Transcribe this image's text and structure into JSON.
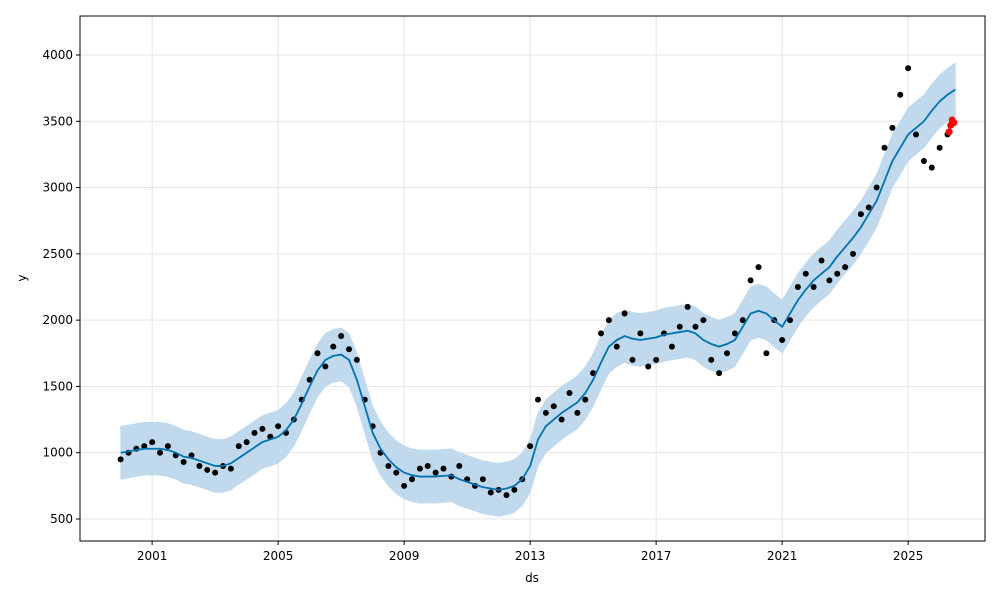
{
  "chart_data": {
    "type": "forecast",
    "xlabel": "ds",
    "ylabel": "y",
    "x": [
      2000,
      2000.25,
      2000.5,
      2000.75,
      2001,
      2001.25,
      2001.5,
      2001.75,
      2002,
      2002.25,
      2002.5,
      2002.75,
      2003,
      2003.25,
      2003.5,
      2003.75,
      2004,
      2004.25,
      2004.5,
      2004.75,
      2005,
      2005.25,
      2005.5,
      2005.75,
      2006,
      2006.25,
      2006.5,
      2006.75,
      2007,
      2007.25,
      2007.5,
      2007.75,
      2008,
      2008.25,
      2008.5,
      2008.75,
      2009,
      2009.25,
      2009.5,
      2009.75,
      2010,
      2010.25,
      2010.5,
      2010.75,
      2011,
      2011.25,
      2011.5,
      2011.75,
      2012,
      2012.25,
      2012.5,
      2012.75,
      2013,
      2013.25,
      2013.5,
      2013.75,
      2014,
      2014.25,
      2014.5,
      2014.75,
      2015,
      2015.25,
      2015.5,
      2015.75,
      2016,
      2016.25,
      2016.5,
      2016.75,
      2017,
      2017.25,
      2017.5,
      2017.75,
      2018,
      2018.25,
      2018.5,
      2018.75,
      2019,
      2019.25,
      2019.5,
      2019.75,
      2020,
      2020.25,
      2020.5,
      2020.75,
      2021,
      2021.25,
      2021.5,
      2021.75,
      2022,
      2022.25,
      2022.5,
      2022.75,
      2023,
      2023.25,
      2023.5,
      2023.75,
      2024,
      2024.25,
      2024.5,
      2024.75,
      2025,
      2025.25,
      2025.5,
      2025.75,
      2026,
      2026.25,
      2026.5
    ],
    "xlim": [
      1998.71,
      2027.44
    ],
    "ylim": [
      334,
      4294
    ],
    "xticks": [
      2001,
      2005,
      2009,
      2013,
      2017,
      2021,
      2025
    ],
    "yticks": [
      500,
      1000,
      1500,
      2000,
      2500,
      3000,
      3500,
      4000
    ],
    "grid": true,
    "band": {
      "color": "#c0d9ec",
      "lower": [
        800,
        810,
        820,
        830,
        830,
        830,
        820,
        800,
        770,
        760,
        740,
        720,
        700,
        700,
        720,
        760,
        800,
        840,
        880,
        900,
        920,
        970,
        1050,
        1170,
        1300,
        1420,
        1500,
        1530,
        1540,
        1500,
        1350,
        1150,
        950,
        830,
        750,
        690,
        650,
        630,
        620,
        620,
        620,
        625,
        630,
        600,
        580,
        560,
        540,
        530,
        520,
        530,
        550,
        600,
        700,
        900,
        1000,
        1050,
        1100,
        1140,
        1180,
        1250,
        1350,
        1480,
        1600,
        1650,
        1680,
        1660,
        1650,
        1660,
        1670,
        1690,
        1700,
        1710,
        1720,
        1700,
        1650,
        1620,
        1600,
        1620,
        1650,
        1750,
        1850,
        1870,
        1850,
        1800,
        1750,
        1850,
        1950,
        2030,
        2100,
        2150,
        2200,
        2280,
        2350,
        2420,
        2500,
        2600,
        2700,
        2850,
        3000,
        3100,
        3200,
        3250,
        3300,
        3380,
        3450,
        3500,
        3540
      ],
      "upper": [
        1200,
        1210,
        1220,
        1230,
        1230,
        1230,
        1220,
        1200,
        1170,
        1160,
        1140,
        1120,
        1100,
        1100,
        1120,
        1160,
        1200,
        1240,
        1280,
        1300,
        1320,
        1370,
        1450,
        1570,
        1700,
        1820,
        1900,
        1930,
        1940,
        1900,
        1750,
        1550,
        1350,
        1230,
        1150,
        1090,
        1050,
        1030,
        1020,
        1020,
        1020,
        1025,
        1030,
        1000,
        980,
        960,
        940,
        930,
        920,
        930,
        950,
        1000,
        1100,
        1300,
        1400,
        1450,
        1500,
        1540,
        1580,
        1650,
        1750,
        1880,
        2000,
        2050,
        2080,
        2060,
        2050,
        2060,
        2070,
        2090,
        2100,
        2110,
        2120,
        2100,
        2050,
        2020,
        2000,
        2020,
        2050,
        2150,
        2250,
        2270,
        2250,
        2200,
        2150,
        2250,
        2350,
        2430,
        2500,
        2550,
        2600,
        2680,
        2750,
        2820,
        2900,
        3000,
        3100,
        3250,
        3400,
        3500,
        3600,
        3650,
        3700,
        3780,
        3850,
        3900,
        3940
      ]
    },
    "forecast": {
      "color": "#0072b2",
      "values": [
        1000,
        1010,
        1020,
        1030,
        1030,
        1030,
        1020,
        1000,
        970,
        960,
        940,
        920,
        900,
        900,
        920,
        960,
        1000,
        1040,
        1080,
        1100,
        1120,
        1170,
        1250,
        1370,
        1500,
        1620,
        1700,
        1730,
        1740,
        1700,
        1550,
        1350,
        1150,
        1030,
        950,
        890,
        850,
        830,
        820,
        820,
        820,
        825,
        830,
        800,
        780,
        760,
        740,
        730,
        720,
        730,
        750,
        800,
        900,
        1100,
        1200,
        1250,
        1300,
        1340,
        1380,
        1450,
        1550,
        1680,
        1800,
        1850,
        1880,
        1860,
        1850,
        1860,
        1870,
        1890,
        1900,
        1910,
        1920,
        1900,
        1850,
        1820,
        1800,
        1820,
        1850,
        1950,
        2050,
        2070,
        2050,
        2000,
        1950,
        2050,
        2150,
        2230,
        2300,
        2350,
        2400,
        2480,
        2550,
        2620,
        2700,
        2800,
        2900,
        3050,
        3200,
        3300,
        3400,
        3450,
        3500,
        3580,
        3650,
        3700,
        3740
      ]
    },
    "observed": {
      "color": "#000000",
      "values": [
        950,
        1000,
        1030,
        1050,
        1080,
        1000,
        1050,
        980,
        930,
        980,
        900,
        870,
        850,
        900,
        880,
        1050,
        1080,
        1150,
        1180,
        1120,
        1200,
        1150,
        1250,
        1400,
        1550,
        1750,
        1650,
        1800,
        1880,
        1780,
        1700,
        1400,
        1200,
        1000,
        900,
        850,
        750,
        800,
        880,
        900,
        850,
        880,
        820,
        900,
        800,
        750,
        800,
        700,
        720,
        680,
        720,
        800,
        1050,
        1400,
        1300,
        1350,
        1250,
        1450,
        1300,
        1400,
        1600,
        1900,
        2000,
        1800,
        2050,
        1700,
        1900,
        1650,
        1700,
        1900,
        1800,
        1950,
        2100,
        1950,
        2000,
        1700,
        1600,
        1750,
        1900,
        2000,
        2300,
        2400,
        1750,
        2000,
        1850,
        2000,
        2250,
        2350,
        2250,
        2450,
        2300,
        2350,
        2400,
        2500,
        2800,
        2850,
        3000,
        3300,
        3450,
        3700,
        3900,
        3400,
        3200,
        3150,
        3300,
        3400,
        null
      ]
    },
    "actual": {
      "color": "#ff0000",
      "x": [
        2026.3,
        2026.35,
        2026.4,
        2026.45
      ],
      "values": [
        3420,
        3470,
        3510,
        3490
      ]
    }
  }
}
